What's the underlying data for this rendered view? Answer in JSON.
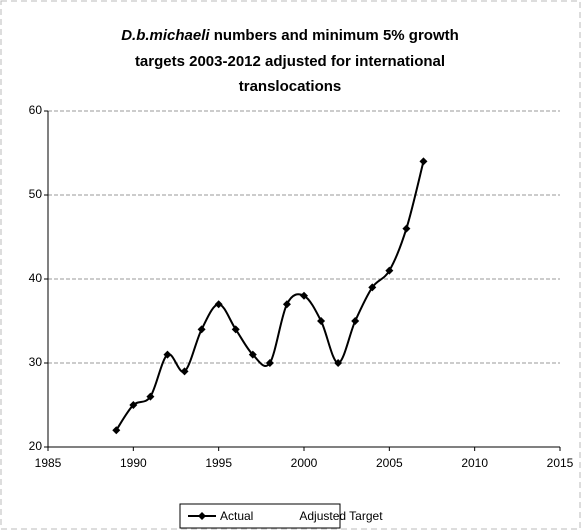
{
  "chart_data": {
    "type": "line",
    "title_italic": "D.b.michaeli",
    "title_lines": [
      "numbers and minimum 5% growth",
      "targets 2003-2012  adjusted for international",
      "translocations"
    ],
    "x": [
      1989,
      1990,
      1991,
      1992,
      1993,
      1994,
      1995,
      1996,
      1997,
      1998,
      1999,
      2000,
      2001,
      2002,
      2003,
      2004,
      2005,
      2006,
      2007
    ],
    "series": [
      {
        "name": "Actual",
        "color": "#000000",
        "values": [
          22,
          25,
          26,
          31,
          29,
          34,
          37,
          34,
          31,
          30,
          37,
          38,
          35,
          30,
          35,
          39,
          41,
          46,
          54
        ]
      },
      {
        "name": "Adjusted Target",
        "color": "#ffffff",
        "values": [
          null,
          null,
          null,
          null,
          null,
          null,
          null,
          null,
          null,
          null,
          null,
          null,
          null,
          null,
          null,
          null,
          null,
          null,
          null
        ]
      }
    ],
    "xlim": [
      1985,
      2015
    ],
    "xticks": [
      1985,
      1990,
      1995,
      2000,
      2005,
      2010,
      2015
    ],
    "ylim": [
      20,
      60
    ],
    "yticks": [
      20,
      30,
      40,
      50,
      60
    ],
    "grid": true,
    "legend": "bottom"
  }
}
